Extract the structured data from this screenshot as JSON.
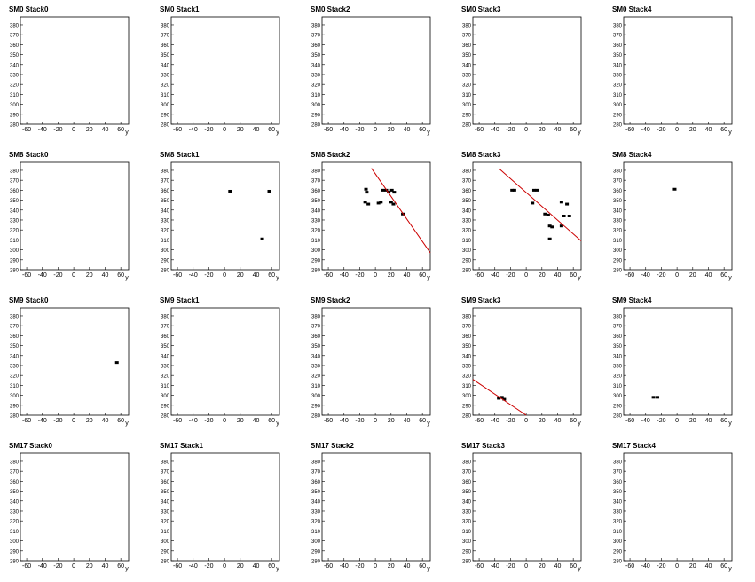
{
  "chart_data": [
    {
      "type": "scatter",
      "title": "SM0 Stack0",
      "xlabel": "y",
      "xlim": [
        -68,
        70
      ],
      "ylim": [
        280,
        388
      ],
      "xticks": [
        -60,
        -40,
        -20,
        0,
        20,
        40,
        60
      ],
      "yticks": [
        280,
        290,
        300,
        310,
        320,
        330,
        340,
        350,
        360,
        370,
        380
      ],
      "color": "#000000",
      "points": {
        "x": [],
        "values": []
      }
    },
    {
      "type": "scatter",
      "title": "SM0 Stack1",
      "xlabel": "y",
      "xlim": [
        -68,
        70
      ],
      "ylim": [
        280,
        388
      ],
      "xticks": [
        -60,
        -40,
        -20,
        0,
        20,
        40,
        60
      ],
      "yticks": [
        280,
        290,
        300,
        310,
        320,
        330,
        340,
        350,
        360,
        370,
        380
      ],
      "color": "#000000",
      "points": {
        "x": [],
        "values": []
      }
    },
    {
      "type": "scatter",
      "title": "SM0 Stack2",
      "xlabel": "y",
      "xlim": [
        -68,
        70
      ],
      "ylim": [
        280,
        388
      ],
      "xticks": [
        -60,
        -40,
        -20,
        0,
        20,
        40,
        60
      ],
      "yticks": [
        280,
        290,
        300,
        310,
        320,
        330,
        340,
        350,
        360,
        370,
        380
      ],
      "color": "#000000",
      "points": {
        "x": [],
        "values": []
      }
    },
    {
      "type": "scatter",
      "title": "SM0 Stack3",
      "xlabel": "y",
      "xlim": [
        -68,
        70
      ],
      "ylim": [
        280,
        388
      ],
      "xticks": [
        -60,
        -40,
        -20,
        0,
        20,
        40,
        60
      ],
      "yticks": [
        280,
        290,
        300,
        310,
        320,
        330,
        340,
        350,
        360,
        370,
        380
      ],
      "color": "#000000",
      "points": {
        "x": [],
        "values": []
      }
    },
    {
      "type": "scatter",
      "title": "SM0 Stack4",
      "xlabel": "y",
      "xlim": [
        -68,
        70
      ],
      "ylim": [
        280,
        388
      ],
      "xticks": [
        -60,
        -40,
        -20,
        0,
        20,
        40,
        60
      ],
      "yticks": [
        280,
        290,
        300,
        310,
        320,
        330,
        340,
        350,
        360,
        370,
        380
      ],
      "color": "#000000",
      "points": {
        "x": [],
        "values": []
      }
    },
    {
      "type": "scatter",
      "title": "SM8 Stack0",
      "xlabel": "y",
      "xlim": [
        -68,
        70
      ],
      "ylim": [
        280,
        388
      ],
      "xticks": [
        -60,
        -40,
        -20,
        0,
        20,
        40,
        60
      ],
      "yticks": [
        280,
        290,
        300,
        310,
        320,
        330,
        340,
        350,
        360,
        370,
        380
      ],
      "color": "#000000",
      "points": {
        "x": [],
        "values": []
      }
    },
    {
      "type": "scatter",
      "title": "SM8 Stack1",
      "xlabel": "y",
      "xlim": [
        -68,
        70
      ],
      "ylim": [
        280,
        388
      ],
      "xticks": [
        -60,
        -40,
        -20,
        0,
        20,
        40,
        60
      ],
      "yticks": [
        280,
        290,
        300,
        310,
        320,
        330,
        340,
        350,
        360,
        370,
        380
      ],
      "color": "#000000",
      "points": {
        "x": [
          7,
          57,
          48
        ],
        "values": [
          359,
          359,
          311
        ]
      }
    },
    {
      "type": "scatter",
      "title": "SM8 Stack2",
      "xlabel": "y",
      "xlim": [
        -68,
        70
      ],
      "ylim": [
        280,
        388
      ],
      "xticks": [
        -60,
        -40,
        -20,
        0,
        20,
        40,
        60
      ],
      "yticks": [
        280,
        290,
        300,
        310,
        320,
        330,
        340,
        350,
        360,
        370,
        380
      ],
      "color": "#000000",
      "points": {
        "x": [
          -12,
          -11,
          -13,
          -9,
          4,
          7,
          10,
          14,
          17,
          21,
          24,
          20,
          23,
          35
        ],
        "values": [
          361,
          358,
          348,
          346,
          347,
          348,
          360,
          360,
          358,
          360,
          358,
          348,
          346,
          336
        ]
      },
      "fit": {
        "color": "#cc0000",
        "x": [
          -5,
          70
        ],
        "values": [
          382,
          297
        ]
      }
    },
    {
      "type": "scatter",
      "title": "SM8 Stack3",
      "xlabel": "y",
      "xlim": [
        -68,
        70
      ],
      "ylim": [
        280,
        388
      ],
      "xticks": [
        -60,
        -40,
        -20,
        0,
        20,
        40,
        60
      ],
      "yticks": [
        280,
        290,
        300,
        310,
        320,
        330,
        340,
        350,
        360,
        370,
        380
      ],
      "color": "#000000",
      "points": {
        "x": [
          -18,
          -15,
          10,
          14,
          8,
          24,
          28,
          30,
          33,
          30,
          45,
          52,
          45,
          48,
          55
        ],
        "values": [
          360,
          360,
          360,
          360,
          347,
          336,
          335,
          324,
          323,
          311,
          348,
          346,
          324,
          334,
          334
        ]
      },
      "fit": {
        "color": "#cc0000",
        "x": [
          -35,
          70
        ],
        "values": [
          382,
          309
        ]
      }
    },
    {
      "type": "scatter",
      "title": "SM8 Stack4",
      "xlabel": "y",
      "xlim": [
        -68,
        70
      ],
      "ylim": [
        280,
        388
      ],
      "xticks": [
        -60,
        -40,
        -20,
        0,
        20,
        40,
        60
      ],
      "yticks": [
        280,
        290,
        300,
        310,
        320,
        330,
        340,
        350,
        360,
        370,
        380
      ],
      "color": "#000000",
      "points": {
        "x": [
          -3
        ],
        "values": [
          361
        ]
      }
    },
    {
      "type": "scatter",
      "title": "SM9 Stack0",
      "xlabel": "y",
      "xlim": [
        -68,
        70
      ],
      "ylim": [
        280,
        388
      ],
      "xticks": [
        -60,
        -40,
        -20,
        0,
        20,
        40,
        60
      ],
      "yticks": [
        280,
        290,
        300,
        310,
        320,
        330,
        340,
        350,
        360,
        370,
        380
      ],
      "color": "#000000",
      "points": {
        "x": [
          55
        ],
        "values": [
          333
        ]
      }
    },
    {
      "type": "scatter",
      "title": "SM9 Stack1",
      "xlabel": "y",
      "xlim": [
        -68,
        70
      ],
      "ylim": [
        280,
        388
      ],
      "xticks": [
        -60,
        -40,
        -20,
        0,
        20,
        40,
        60
      ],
      "yticks": [
        280,
        290,
        300,
        310,
        320,
        330,
        340,
        350,
        360,
        370,
        380
      ],
      "color": "#000000",
      "points": {
        "x": [],
        "values": []
      }
    },
    {
      "type": "scatter",
      "title": "SM9 Stack2",
      "xlabel": "y",
      "xlim": [
        -68,
        70
      ],
      "ylim": [
        280,
        388
      ],
      "xticks": [
        -60,
        -40,
        -20,
        0,
        20,
        40,
        60
      ],
      "yticks": [
        280,
        290,
        300,
        310,
        320,
        330,
        340,
        350,
        360,
        370,
        380
      ],
      "color": "#000000",
      "points": {
        "x": [],
        "values": []
      }
    },
    {
      "type": "scatter",
      "title": "SM9 Stack3",
      "xlabel": "y",
      "xlim": [
        -68,
        70
      ],
      "ylim": [
        280,
        388
      ],
      "xticks": [
        -60,
        -40,
        -20,
        0,
        20,
        40,
        60
      ],
      "yticks": [
        280,
        290,
        300,
        310,
        320,
        330,
        340,
        350,
        360,
        370,
        380
      ],
      "color": "#000000",
      "points": {
        "x": [
          -35,
          -31,
          -28
        ],
        "values": [
          297,
          298,
          296
        ]
      },
      "fit": {
        "color": "#cc0000",
        "x": [
          -68,
          0
        ],
        "values": [
          316,
          280
        ]
      }
    },
    {
      "type": "scatter",
      "title": "SM9 Stack4",
      "xlabel": "y",
      "xlim": [
        -68,
        70
      ],
      "ylim": [
        280,
        388
      ],
      "xticks": [
        -60,
        -40,
        -20,
        0,
        20,
        40,
        60
      ],
      "yticks": [
        280,
        290,
        300,
        310,
        320,
        330,
        340,
        350,
        360,
        370,
        380
      ],
      "color": "#000000",
      "points": {
        "x": [
          -30,
          -25
        ],
        "values": [
          298,
          298
        ]
      }
    },
    {
      "type": "scatter",
      "title": "SM17 Stack0",
      "xlabel": "y",
      "xlim": [
        -68,
        70
      ],
      "ylim": [
        280,
        388
      ],
      "xticks": [
        -60,
        -40,
        -20,
        0,
        20,
        40,
        60
      ],
      "yticks": [
        280,
        290,
        300,
        310,
        320,
        330,
        340,
        350,
        360,
        370,
        380
      ],
      "color": "#000000",
      "points": {
        "x": [],
        "values": []
      }
    },
    {
      "type": "scatter",
      "title": "SM17 Stack1",
      "xlabel": "y",
      "xlim": [
        -68,
        70
      ],
      "ylim": [
        280,
        388
      ],
      "xticks": [
        -60,
        -40,
        -20,
        0,
        20,
        40,
        60
      ],
      "yticks": [
        280,
        290,
        300,
        310,
        320,
        330,
        340,
        350,
        360,
        370,
        380
      ],
      "color": "#000000",
      "points": {
        "x": [],
        "values": []
      }
    },
    {
      "type": "scatter",
      "title": "SM17 Stack2",
      "xlabel": "y",
      "xlim": [
        -68,
        70
      ],
      "ylim": [
        280,
        388
      ],
      "xticks": [
        -60,
        -40,
        -20,
        0,
        20,
        40,
        60
      ],
      "yticks": [
        280,
        290,
        300,
        310,
        320,
        330,
        340,
        350,
        360,
        370,
        380
      ],
      "color": "#000000",
      "points": {
        "x": [],
        "values": []
      }
    },
    {
      "type": "scatter",
      "title": "SM17 Stack3",
      "xlabel": "y",
      "xlim": [
        -68,
        70
      ],
      "ylim": [
        280,
        388
      ],
      "xticks": [
        -60,
        -40,
        -20,
        0,
        20,
        40,
        60
      ],
      "yticks": [
        280,
        290,
        300,
        310,
        320,
        330,
        340,
        350,
        360,
        370,
        380
      ],
      "color": "#000000",
      "points": {
        "x": [],
        "values": []
      }
    },
    {
      "type": "scatter",
      "title": "SM17 Stack4",
      "xlabel": "y",
      "xlim": [
        -68,
        70
      ],
      "ylim": [
        280,
        388
      ],
      "xticks": [
        -60,
        -40,
        -20,
        0,
        20,
        40,
        60
      ],
      "yticks": [
        280,
        290,
        300,
        310,
        320,
        330,
        340,
        350,
        360,
        370,
        380
      ],
      "color": "#000000",
      "points": {
        "x": [],
        "values": []
      }
    }
  ]
}
